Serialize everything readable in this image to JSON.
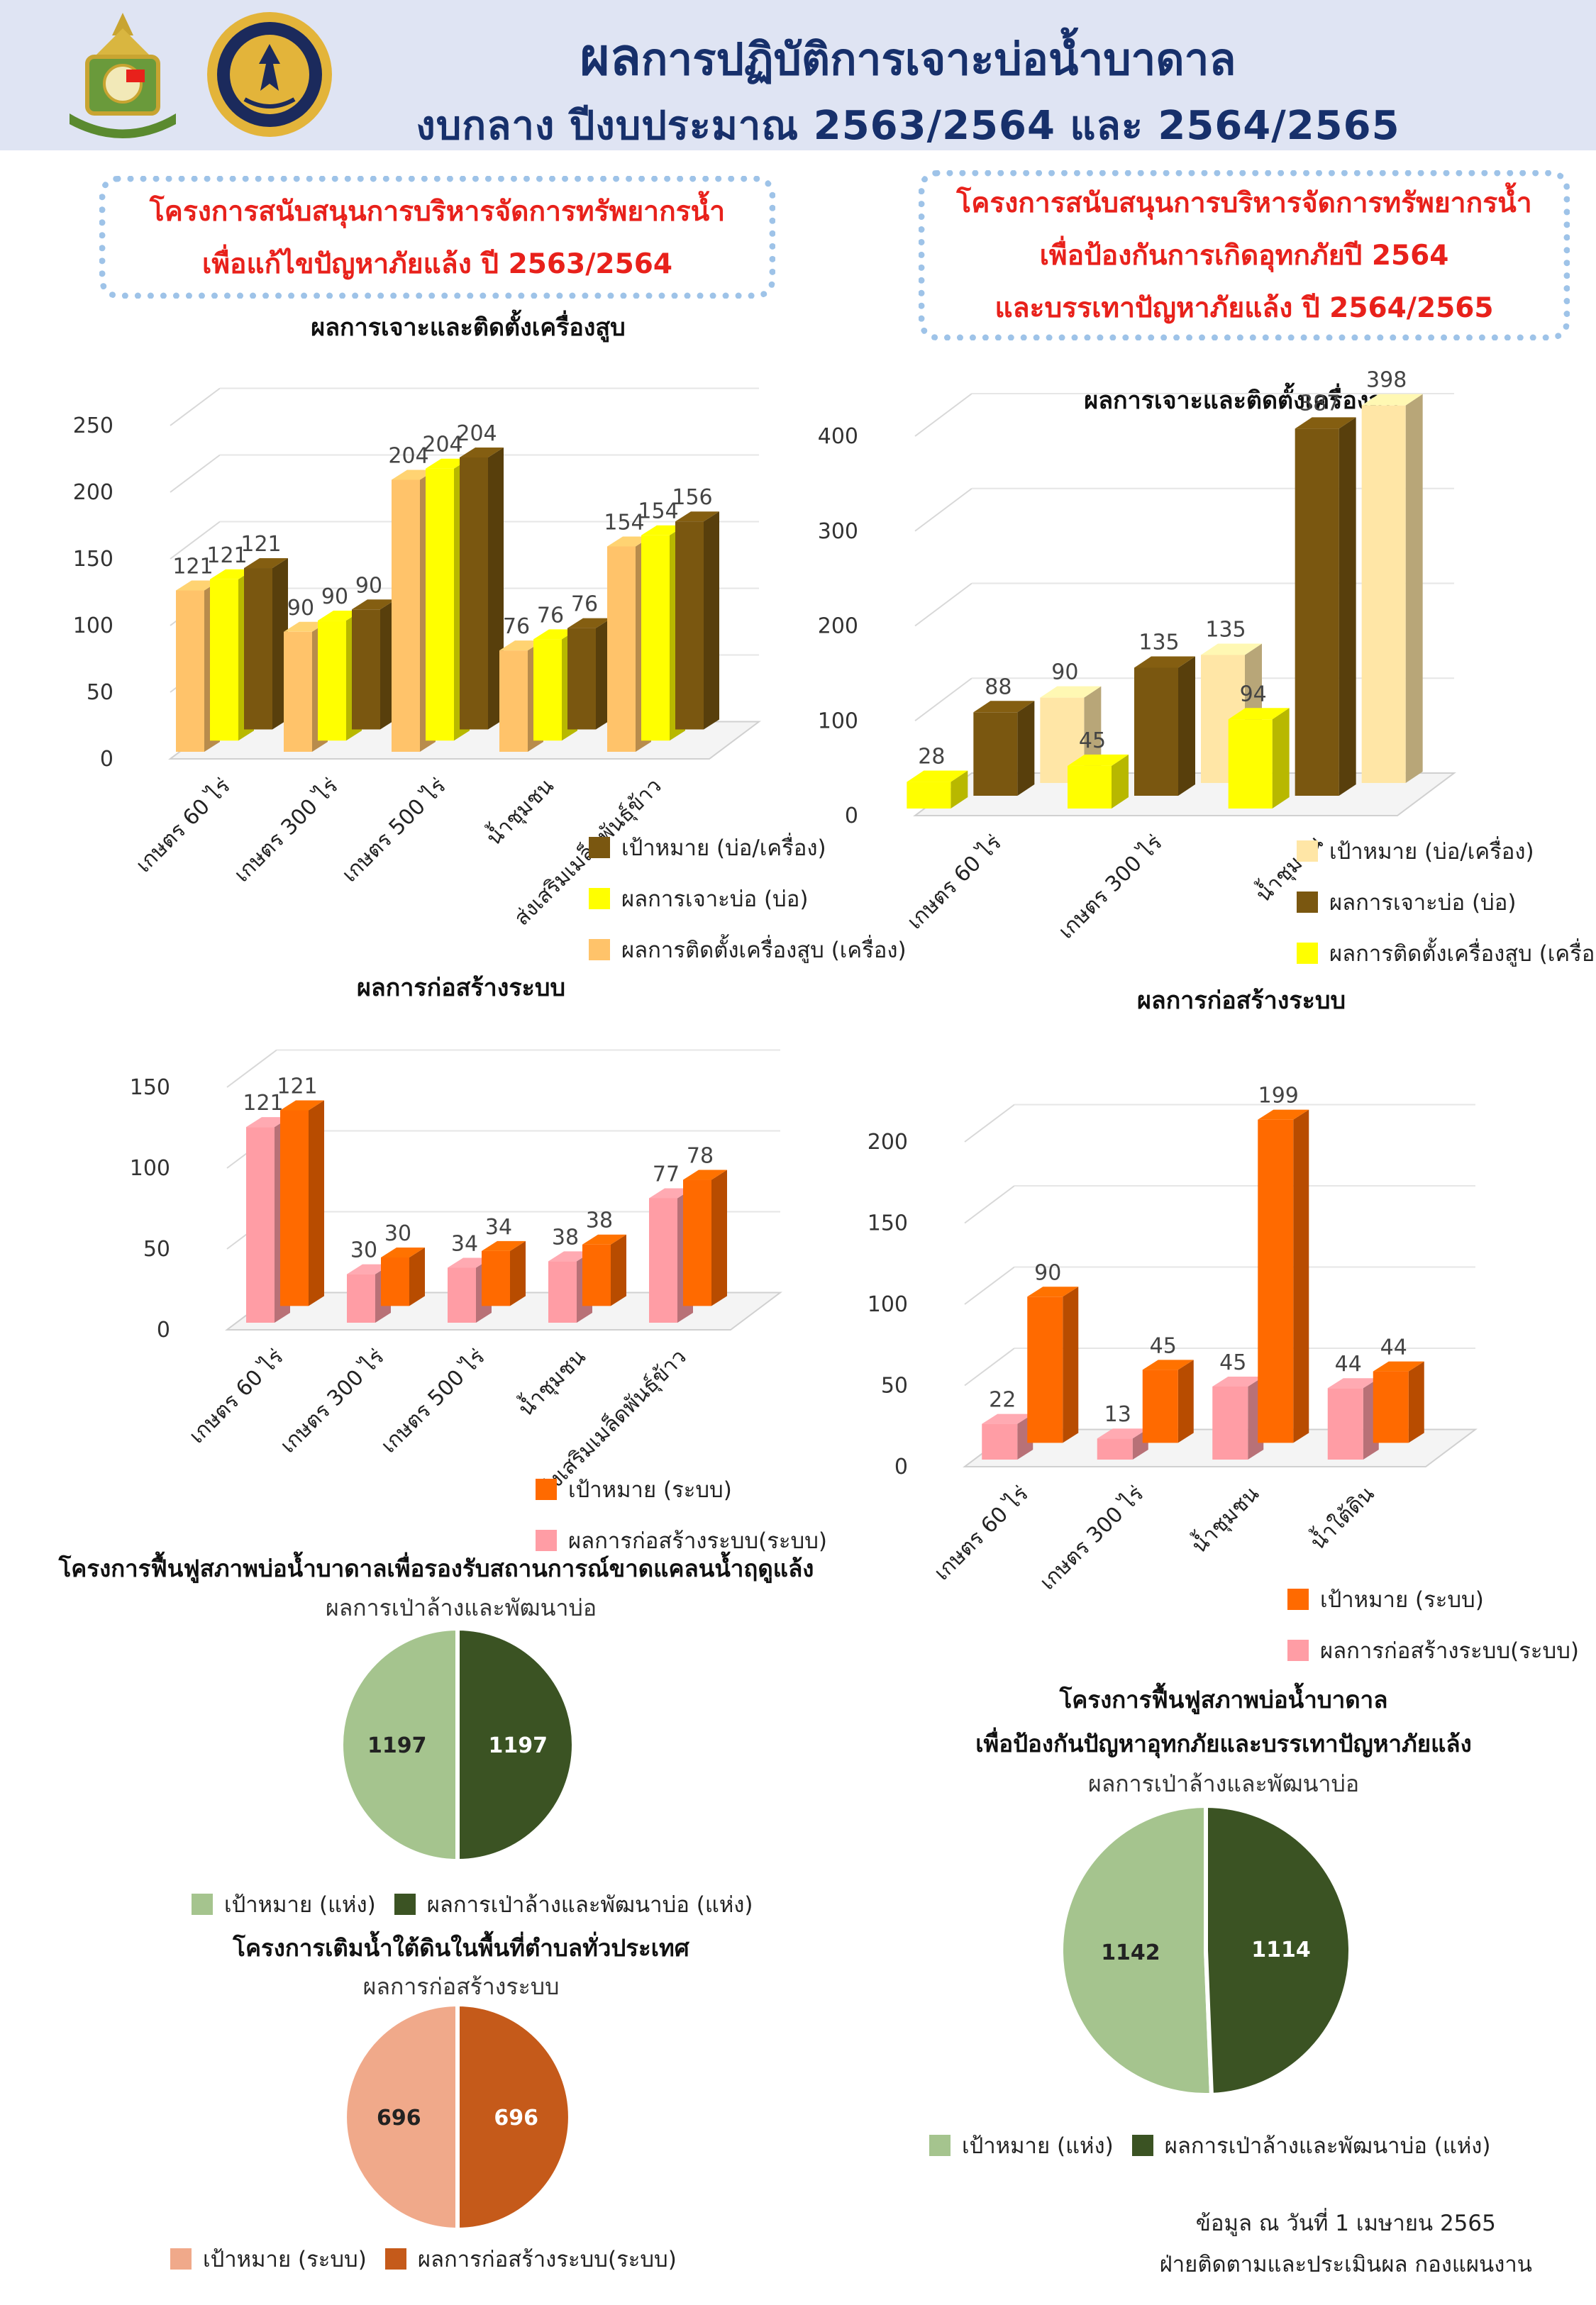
{
  "header": {
    "title_bold": "ผล",
    "title_rest": "การปฏิบัติการเจาะบ่อน้ำบาดาล",
    "subtitle": "งบกลาง ปีงบประมาณ 2563/2564 และ 2564/2565"
  },
  "colors": {
    "header_bg": "#dfe4f3",
    "title": "#17306b",
    "project_title": "#e8211b",
    "dark_brown": "#7a5710",
    "yellow": "#ffff00",
    "light_orange": "#ffc36a",
    "cream": "#ffe6a6",
    "orange": "#ff6a00",
    "pink": "#ff9da5",
    "light_green": "#a5c48e",
    "dark_green": "#3b5323",
    "salmon": "#f0a98a",
    "burnt_orange": "#c55a1a"
  },
  "left_project": {
    "line1": "โครงการสนับสนุนการบริหารจัดการทรัพยากรน้ำ",
    "line2": "เพื่อแก้ไขปัญหาภัยแล้ง ปี 2563/2564"
  },
  "right_project": {
    "line1": "โครงการสนับสนุนการบริหารจัดการทรัพยากรน้ำ",
    "line2": "เพื่อป้องกันการเกิดอุทกภัยปี 2564",
    "line3": "และบรรเทาปัญหาภัยแล้ง ปี 2564/2565"
  },
  "restore_left": {
    "title": "โครงการฟื้นฟูสภาพบ่อน้ำบาดาลเพื่อรองรับสถานการณ์ขาดแคลนน้ำฤดูแล้ง",
    "subtitle": "ผลการเป่าล้างและพัฒนาบ่อ"
  },
  "recharge": {
    "title": "โครงการเติมน้ำใต้ดินในพื้นที่ตำบลทั่วประเทศ",
    "subtitle": "ผลการก่อสร้างระบบ"
  },
  "restore_right": {
    "title_line1": "โครงการฟื้นฟูสภาพบ่อน้ำบาดาล",
    "title_line2": "เพื่อป้องกันปัญหาอุทกภัยและบรรเทาปัญหาภัยแล้ง",
    "subtitle": "ผลการเป่าล้างและพัฒนาบ่อ"
  },
  "footer": {
    "line1": "ข้อมูล ณ วันที่ 1 เมษายน 2565",
    "line2": "ฝ่ายติดตามและประเมินผล กองแผนงาน"
  },
  "chart_data": [
    {
      "id": "c1",
      "type": "bar",
      "title": "ผลการเจาะและติดตั้งเครื่องสูบ",
      "categories": [
        "เกษตร 60 ไร่",
        "เกษตร 300 ไร่",
        "เกษตร 500 ไร่",
        "น้ำชุมชน",
        "ส่งเสริมเมล็ดพันธุ์ข้าว"
      ],
      "series": [
        {
          "name": "ผลการติดตั้งเครื่องสูบ (เครื่อง)",
          "color": "#ffc36a",
          "values": [
            121,
            90,
            204,
            76,
            154
          ]
        },
        {
          "name": "ผลการเจาะบ่อ (บ่อ)",
          "color": "#ffff00",
          "values": [
            121,
            90,
            204,
            76,
            154
          ]
        },
        {
          "name": "เป้าหมาย (บ่อ/เครื่อง)",
          "color": "#7a5710",
          "values": [
            121,
            90,
            204,
            76,
            156
          ]
        }
      ],
      "legend_order": [
        2,
        1,
        0
      ],
      "ylim": [
        0,
        250
      ],
      "yticks": [
        0,
        50,
        100,
        150,
        200,
        250
      ]
    },
    {
      "id": "c2",
      "type": "bar",
      "title": "ผลการเจาะและติดตั้งเครื่องสูบ",
      "categories": [
        "เกษตร 60 ไร่",
        "เกษตร 300 ไร่",
        "น้ำชุมชน"
      ],
      "series": [
        {
          "name": "ผลการติดตั้งเครื่องสูบ (เครื่อง)",
          "color": "#ffff00",
          "values": [
            28,
            45,
            94
          ]
        },
        {
          "name": "ผลการเจาะบ่อ (บ่อ)",
          "color": "#7a5710",
          "values": [
            88,
            135,
            387
          ]
        },
        {
          "name": "เป้าหมาย (บ่อ/เครื่อง)",
          "color": "#ffe6a6",
          "values": [
            90,
            135,
            398
          ]
        }
      ],
      "legend_order": [
        2,
        1,
        0
      ],
      "ylim": [
        0,
        400
      ],
      "yticks": [
        0,
        100,
        200,
        300,
        400
      ]
    },
    {
      "id": "c3",
      "type": "bar",
      "title": "ผลการก่อสร้างระบบ",
      "categories": [
        "เกษตร 60 ไร่",
        "เกษตร 300 ไร่",
        "เกษตร 500 ไร่",
        "น้ำชุมชน",
        "ส่งเสริมเมล็ดพันธุ์ข้าว"
      ],
      "series": [
        {
          "name": "ผลการก่อสร้างระบบ(ระบบ)",
          "color": "#ff9da5",
          "values": [
            121,
            30,
            34,
            38,
            77
          ]
        },
        {
          "name": "เป้าหมาย (ระบบ)",
          "color": "#ff6a00",
          "values": [
            121,
            30,
            34,
            38,
            78
          ]
        }
      ],
      "legend_order": [
        1,
        0
      ],
      "ylim": [
        0,
        150
      ],
      "yticks": [
        0,
        50,
        100,
        150
      ]
    },
    {
      "id": "c4",
      "type": "bar",
      "title": "ผลการก่อสร้างระบบ",
      "categories": [
        "เกษตร 60 ไร่",
        "เกษตร 300 ไร่",
        "น้ำชุมชน",
        "น้ำใต้ดิน"
      ],
      "series": [
        {
          "name": "ผลการก่อสร้างระบบ(ระบบ)",
          "color": "#ff9da5",
          "values": [
            22,
            13,
            45,
            44
          ]
        },
        {
          "name": "เป้าหมาย (ระบบ)",
          "color": "#ff6a00",
          "values": [
            90,
            45,
            199,
            44
          ]
        }
      ],
      "legend_order": [
        1,
        0
      ],
      "ylim": [
        0,
        200
      ],
      "yticks": [
        0,
        50,
        100,
        150,
        200
      ]
    },
    {
      "id": "p1",
      "type": "pie",
      "labels": [
        "เป้าหมาย (แห่ง)",
        "ผลการเป่าล้างและพัฒนาบ่อ (แห่ง)"
      ],
      "values": [
        1197,
        1197
      ],
      "colors": [
        "#a5c48e",
        "#3b5323"
      ]
    },
    {
      "id": "p2",
      "type": "pie",
      "labels": [
        "เป้าหมาย (ระบบ)",
        "ผลการก่อสร้างระบบ(ระบบ)"
      ],
      "values": [
        696,
        696
      ],
      "colors": [
        "#f0a98a",
        "#c55a1a"
      ]
    },
    {
      "id": "p3",
      "type": "pie",
      "labels": [
        "เป้าหมาย (แห่ง)",
        "ผลการเป่าล้างและพัฒนาบ่อ (แห่ง)"
      ],
      "values": [
        1142,
        1114
      ],
      "colors": [
        "#a5c48e",
        "#3b5323"
      ]
    }
  ]
}
